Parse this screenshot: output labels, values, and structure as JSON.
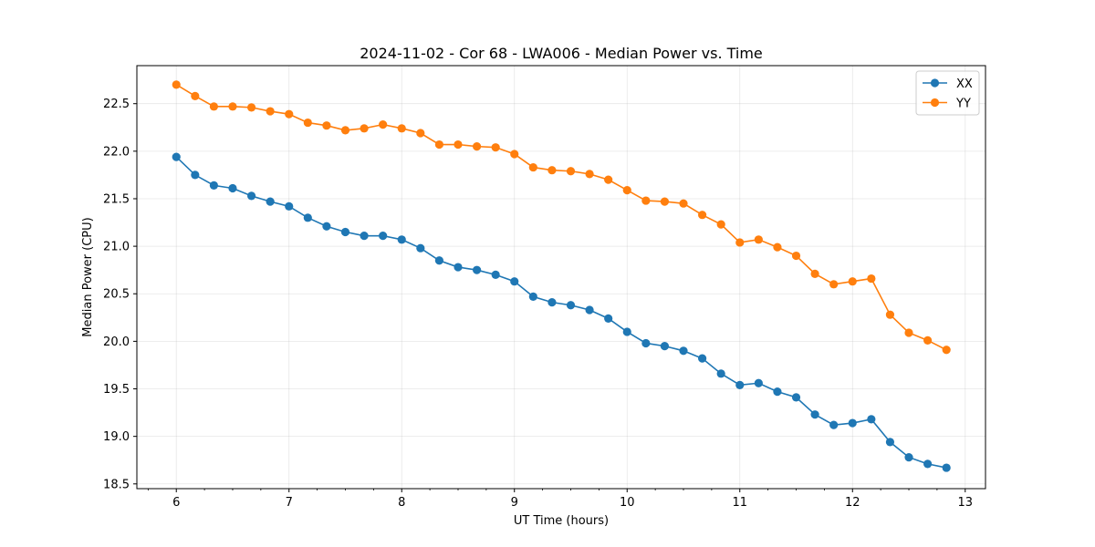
{
  "chart_data": {
    "type": "line",
    "title": "2024-11-02 - Cor 68 - LWA006 - Median Power vs. Time",
    "xlabel": "UT Time (hours)",
    "ylabel": "Median Power (CPU)",
    "xlim": [
      5.65,
      13.18
    ],
    "ylim": [
      18.45,
      22.9
    ],
    "xticks": [
      6,
      7,
      8,
      9,
      10,
      11,
      12,
      13
    ],
    "xtick_labels": [
      "6",
      "7",
      "8",
      "9",
      "10",
      "11",
      "12",
      "13"
    ],
    "xminor_step": 0.25,
    "yticks": [
      18.5,
      19.0,
      19.5,
      20.0,
      20.5,
      21.0,
      21.5,
      22.0,
      22.5
    ],
    "ytick_labels": [
      "18.5",
      "19.0",
      "19.5",
      "20.0",
      "20.5",
      "21.0",
      "21.5",
      "22.0",
      "22.5"
    ],
    "grid": true,
    "legend_position": "top-right",
    "x": [
      6.0,
      6.1667,
      6.3333,
      6.5,
      6.6667,
      6.8333,
      7.0,
      7.1667,
      7.3333,
      7.5,
      7.6667,
      7.8333,
      8.0,
      8.1667,
      8.3333,
      8.5,
      8.6667,
      8.8333,
      9.0,
      9.1667,
      9.3333,
      9.5,
      9.6667,
      9.8333,
      10.0,
      10.1667,
      10.3333,
      10.5,
      10.6667,
      10.8333,
      11.0,
      11.1667,
      11.3333,
      11.5,
      11.6667,
      11.8333,
      12.0,
      12.1667,
      12.3333,
      12.5,
      12.6667,
      12.8333
    ],
    "series": [
      {
        "name": "XX",
        "color": "#1f77b4",
        "values": [
          21.94,
          21.75,
          21.64,
          21.61,
          21.53,
          21.47,
          21.42,
          21.3,
          21.21,
          21.15,
          21.11,
          21.11,
          21.07,
          20.98,
          20.85,
          20.78,
          20.75,
          20.7,
          20.63,
          20.47,
          20.41,
          20.38,
          20.33,
          20.24,
          20.1,
          19.98,
          19.95,
          19.9,
          19.82,
          19.66,
          19.54,
          19.56,
          19.47,
          19.41,
          19.23,
          19.12,
          19.14,
          19.18,
          18.94,
          18.78,
          18.71,
          18.67
        ]
      },
      {
        "name": "YY",
        "color": "#ff7f0e",
        "values": [
          22.7,
          22.58,
          22.47,
          22.47,
          22.46,
          22.42,
          22.39,
          22.3,
          22.27,
          22.22,
          22.24,
          22.28,
          22.24,
          22.19,
          22.07,
          22.07,
          22.05,
          22.04,
          21.97,
          21.83,
          21.8,
          21.79,
          21.76,
          21.7,
          21.59,
          21.48,
          21.47,
          21.45,
          21.33,
          21.23,
          21.04,
          21.07,
          20.99,
          20.9,
          20.71,
          20.6,
          20.63,
          20.66,
          20.28,
          20.09,
          20.01,
          19.91
        ]
      }
    ]
  }
}
